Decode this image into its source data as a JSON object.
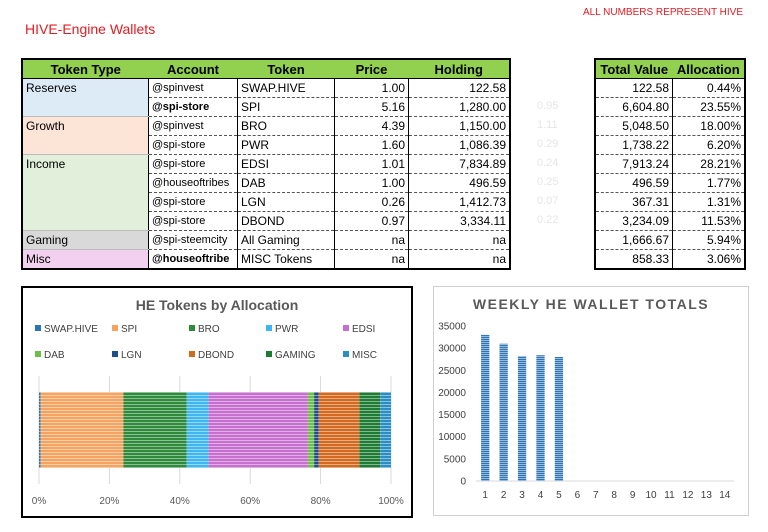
{
  "header": {
    "title": "HIVE-Engine Wallets",
    "note": "ALL NUMBERS REPRESENT HIVE"
  },
  "table": {
    "columns": [
      "Token Type",
      "Account",
      "Token",
      "Price",
      "Holding"
    ],
    "rows": [
      {
        "type": "Reserves",
        "account": "@spinvest",
        "token": "SWAP.HIVE",
        "price": "1.00",
        "holding": "122.58",
        "bg": "#ddebf7"
      },
      {
        "type": "",
        "account": "@spi-store",
        "token": "SPI",
        "price": "5.16",
        "holding": "1,280.00",
        "bg": "#ddebf7"
      },
      {
        "type": "Growth",
        "account": "@spinvest",
        "token": "BRO",
        "price": "4.39",
        "holding": "1,150.00",
        "bg": "#fce4d6"
      },
      {
        "type": "",
        "account": "@spi-store",
        "token": "PWR",
        "price": "1.60",
        "holding": "1,086.39",
        "bg": "#fce4d6"
      },
      {
        "type": "Income",
        "account": "@spi-store",
        "token": "EDSI",
        "price": "1.01",
        "holding": "7,834.89",
        "bg": "#e2efda"
      },
      {
        "type": "",
        "account": "@houseoftribes",
        "token": "DAB",
        "price": "1.00",
        "holding": "496.59",
        "bg": "#e2efda"
      },
      {
        "type": "",
        "account": "@spi-store",
        "token": "LGN",
        "price": "0.26",
        "holding": "1,412.73",
        "bg": "#e2efda"
      },
      {
        "type": "",
        "account": "@spi-store",
        "token": "DBOND",
        "price": "0.97",
        "holding": "3,334.11",
        "bg": "#e2efda"
      },
      {
        "type": "Gaming",
        "account": "@spi-steemcity",
        "token": "All Gaming",
        "price": "na",
        "holding": "na",
        "bg": "#d9d9d9"
      },
      {
        "type": "Misc",
        "account": "@houseoftribe",
        "token": "MISC Tokens",
        "price": "na",
        "holding": "na",
        "bg": "#f3d0f0"
      }
    ],
    "faint_values": [
      "0.95",
      "1.11",
      "0.29",
      "0.24",
      "0.25",
      "0.07",
      "0.22"
    ]
  },
  "totals": {
    "columns": [
      "Total Value",
      "Allocation"
    ],
    "rows": [
      {
        "value": "122.58",
        "alloc": "0.44%"
      },
      {
        "value": "6,604.80",
        "alloc": "23.55%"
      },
      {
        "value": "5,048.50",
        "alloc": "18.00%"
      },
      {
        "value": "1,738.22",
        "alloc": "6.20%"
      },
      {
        "value": "7,913.24",
        "alloc": "28.21%"
      },
      {
        "value": "496.59",
        "alloc": "1.77%"
      },
      {
        "value": "367.31",
        "alloc": "1.31%"
      },
      {
        "value": "3,234.09",
        "alloc": "11.53%"
      },
      {
        "value": "1,666.67",
        "alloc": "5.94%"
      },
      {
        "value": "858.33",
        "alloc": "3.06%"
      }
    ]
  },
  "chart_data": [
    {
      "type": "bar",
      "title": "HE Tokens by Allocation",
      "stacked": true,
      "orientation": "horizontal",
      "xlim": [
        0,
        100
      ],
      "xticks": [
        "0%",
        "20%",
        "40%",
        "60%",
        "80%",
        "100%"
      ],
      "legend_position": "top",
      "series": [
        {
          "name": "SWAP.HIVE",
          "value": 0.44,
          "color": "#2e75b6"
        },
        {
          "name": "SPI",
          "value": 23.55,
          "color": "#f4a460"
        },
        {
          "name": "BRO",
          "value": 18.0,
          "color": "#2e8b3c"
        },
        {
          "name": "PWR",
          "value": 6.2,
          "color": "#40b6f0"
        },
        {
          "name": "EDSI",
          "value": 28.21,
          "color": "#c66fd0"
        },
        {
          "name": "DAB",
          "value": 1.77,
          "color": "#6cc04a"
        },
        {
          "name": "LGN",
          "value": 1.31,
          "color": "#1f4e8c"
        },
        {
          "name": "DBOND",
          "value": 11.53,
          "color": "#d2691e"
        },
        {
          "name": "GAMING",
          "value": 5.94,
          "color": "#1e7b34"
        },
        {
          "name": "MISC",
          "value": 3.06,
          "color": "#2b8ec2"
        }
      ]
    },
    {
      "type": "bar",
      "title": "WEEKLY HE WALLET TOTALS",
      "categories": [
        "1",
        "2",
        "3",
        "4",
        "5",
        "6",
        "7",
        "8",
        "9",
        "10",
        "11",
        "12",
        "13",
        "14"
      ],
      "values": [
        33000,
        31000,
        28200,
        28400,
        28000,
        null,
        null,
        null,
        null,
        null,
        null,
        null,
        null,
        null
      ],
      "ylim": [
        0,
        35000
      ],
      "yticks": [
        "0",
        "5000",
        "10000",
        "15000",
        "20000",
        "25000",
        "30000",
        "35000"
      ],
      "color": "#2e75b6",
      "grid": false
    }
  ]
}
